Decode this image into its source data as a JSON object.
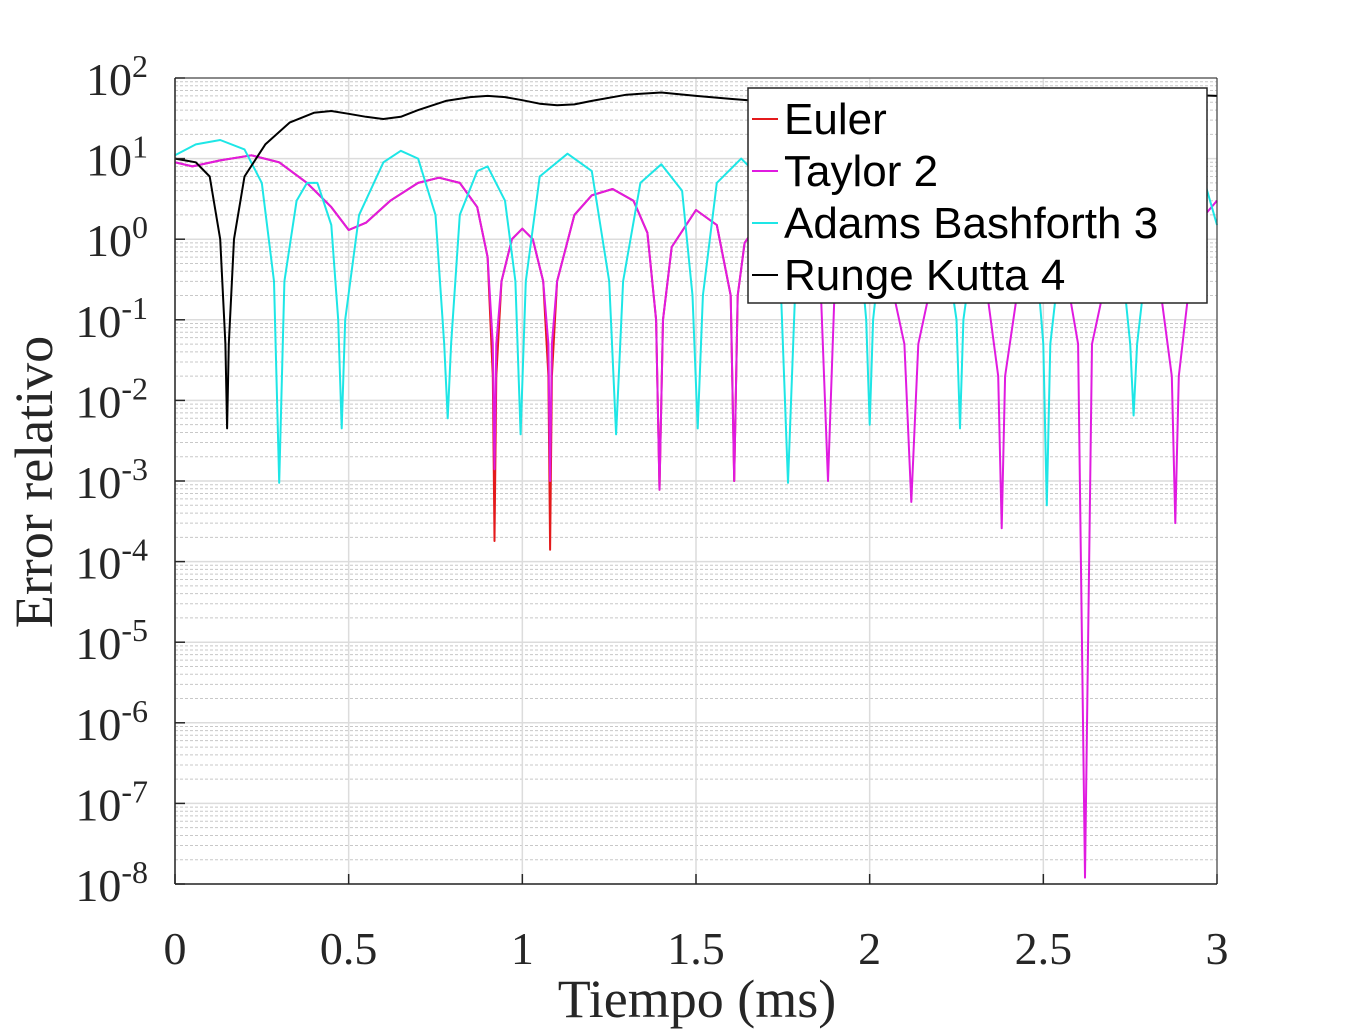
{
  "chart_data": {
    "type": "line",
    "xlabel": "Tiempo (ms)",
    "ylabel": "Error relativo",
    "xlim": [
      0,
      3
    ],
    "ylim": [
      1e-08,
      100
    ],
    "yscale": "log",
    "grid": true,
    "minor_grid": true,
    "legend_placement": "top-right",
    "x_ticks": [
      0,
      0.5,
      1,
      1.5,
      2,
      2.5,
      3
    ],
    "x_tick_labels": [
      "0",
      "0.5",
      "1",
      "1.5",
      "2",
      "2.5",
      "3"
    ],
    "y_tick_exponents": [
      2,
      1,
      0,
      -1,
      -2,
      -3,
      -4,
      -5,
      -6,
      -7,
      -8
    ],
    "y_tick_base": "10",
    "series": [
      {
        "name": "Euler",
        "color": "#e41a1c",
        "points": [
          [
            0,
            9.0
          ],
          [
            0.05,
            8.0
          ],
          [
            0.13,
            9.5
          ],
          [
            0.22,
            11.0
          ],
          [
            0.3,
            9.0
          ],
          [
            0.38,
            5.0
          ],
          [
            0.45,
            2.5
          ],
          [
            0.5,
            1.3
          ],
          [
            0.55,
            1.6
          ],
          [
            0.62,
            3.0
          ],
          [
            0.7,
            5.0
          ],
          [
            0.76,
            5.8
          ],
          [
            0.82,
            5.0
          ],
          [
            0.87,
            2.5
          ],
          [
            0.9,
            0.6
          ],
          [
            0.915,
            0.02
          ],
          [
            0.92,
            0.00018
          ],
          [
            0.925,
            0.02
          ],
          [
            0.94,
            0.3
          ],
          [
            0.97,
            1.0
          ],
          [
            1.0,
            1.35
          ],
          [
            1.03,
            1.0
          ],
          [
            1.06,
            0.3
          ],
          [
            1.075,
            0.02
          ],
          [
            1.08,
            0.00014
          ],
          [
            1.085,
            0.02
          ],
          [
            1.1,
            0.3
          ],
          [
            1.15,
            2.0
          ],
          [
            1.2,
            3.5
          ],
          [
            1.26,
            4.2
          ],
          [
            1.32,
            3.0
          ],
          [
            1.36,
            1.2
          ],
          [
            1.385,
            0.1
          ],
          [
            1.395,
            0.00078
          ],
          [
            1.405,
            0.1
          ],
          [
            1.43,
            0.8
          ],
          [
            1.5,
            2.3
          ],
          [
            1.56,
            1.5
          ],
          [
            1.6,
            0.2
          ],
          [
            1.61,
            0.001
          ],
          [
            1.62,
            0.2
          ],
          [
            1.64,
            0.9
          ],
          [
            1.66,
            1.2
          ],
          [
            1.7,
            1.4
          ]
        ]
      },
      {
        "name": "Taylor 2",
        "color": "#e01be0",
        "points": [
          [
            0,
            9.0
          ],
          [
            0.05,
            8.0
          ],
          [
            0.13,
            9.5
          ],
          [
            0.22,
            11.0
          ],
          [
            0.3,
            9.0
          ],
          [
            0.38,
            5.0
          ],
          [
            0.45,
            2.5
          ],
          [
            0.5,
            1.3
          ],
          [
            0.55,
            1.6
          ],
          [
            0.62,
            3.0
          ],
          [
            0.7,
            5.0
          ],
          [
            0.76,
            5.8
          ],
          [
            0.82,
            5.0
          ],
          [
            0.87,
            2.5
          ],
          [
            0.9,
            0.6
          ],
          [
            0.915,
            0.05
          ],
          [
            0.92,
            0.0014
          ],
          [
            0.925,
            0.05
          ],
          [
            0.94,
            0.3
          ],
          [
            0.97,
            1.0
          ],
          [
            1.0,
            1.35
          ],
          [
            1.03,
            1.0
          ],
          [
            1.06,
            0.3
          ],
          [
            1.075,
            0.05
          ],
          [
            1.08,
            0.001
          ],
          [
            1.085,
            0.05
          ],
          [
            1.1,
            0.3
          ],
          [
            1.15,
            2.0
          ],
          [
            1.2,
            3.5
          ],
          [
            1.26,
            4.2
          ],
          [
            1.32,
            3.0
          ],
          [
            1.36,
            1.2
          ],
          [
            1.385,
            0.1
          ],
          [
            1.395,
            0.00078
          ],
          [
            1.405,
            0.1
          ],
          [
            1.43,
            0.8
          ],
          [
            1.5,
            2.3
          ],
          [
            1.56,
            1.5
          ],
          [
            1.6,
            0.2
          ],
          [
            1.61,
            0.001
          ],
          [
            1.62,
            0.2
          ],
          [
            1.64,
            0.9
          ],
          [
            1.66,
            1.2
          ],
          [
            1.7,
            1.4
          ],
          [
            1.8,
            1.0
          ],
          [
            1.86,
            0.2
          ],
          [
            1.88,
            0.001
          ],
          [
            1.9,
            0.3
          ],
          [
            1.96,
            1.0
          ],
          [
            2.0,
            1.3
          ],
          [
            2.05,
            0.5
          ],
          [
            2.1,
            0.05
          ],
          [
            2.12,
            0.00055
          ],
          [
            2.14,
            0.05
          ],
          [
            2.2,
            0.8
          ],
          [
            2.27,
            1.2
          ],
          [
            2.33,
            0.4
          ],
          [
            2.37,
            0.02
          ],
          [
            2.38,
            0.00026
          ],
          [
            2.39,
            0.02
          ],
          [
            2.44,
            0.6
          ],
          [
            2.5,
            1.0
          ],
          [
            2.56,
            0.5
          ],
          [
            2.6,
            0.05
          ],
          [
            2.62,
            1.2e-08
          ],
          [
            2.64,
            0.05
          ],
          [
            2.7,
            0.8
          ],
          [
            2.76,
            1.0
          ],
          [
            2.83,
            0.4
          ],
          [
            2.87,
            0.02
          ],
          [
            2.88,
            0.0003
          ],
          [
            2.89,
            0.02
          ],
          [
            2.94,
            1.5
          ],
          [
            3.0,
            3.0
          ]
        ]
      },
      {
        "name": "Adams Bashforth 3",
        "color": "#1ee6e6",
        "points": [
          [
            0,
            11.0
          ],
          [
            0.06,
            15.0
          ],
          [
            0.13,
            17.0
          ],
          [
            0.2,
            13.0
          ],
          [
            0.25,
            5.0
          ],
          [
            0.285,
            0.3
          ],
          [
            0.3,
            0.00095
          ],
          [
            0.315,
            0.3
          ],
          [
            0.35,
            3.0
          ],
          [
            0.38,
            5.0
          ],
          [
            0.41,
            5.0
          ],
          [
            0.45,
            1.5
          ],
          [
            0.47,
            0.1
          ],
          [
            0.48,
            0.0045
          ],
          [
            0.49,
            0.1
          ],
          [
            0.53,
            2.0
          ],
          [
            0.6,
            9.0
          ],
          [
            0.65,
            12.5
          ],
          [
            0.7,
            10.0
          ],
          [
            0.75,
            2.0
          ],
          [
            0.775,
            0.05
          ],
          [
            0.785,
            0.006
          ],
          [
            0.795,
            0.05
          ],
          [
            0.82,
            2.0
          ],
          [
            0.87,
            7.0
          ],
          [
            0.9,
            8.0
          ],
          [
            0.95,
            3.0
          ],
          [
            0.98,
            0.3
          ],
          [
            0.995,
            0.0038
          ],
          [
            1.01,
            0.3
          ],
          [
            1.05,
            6.0
          ],
          [
            1.13,
            11.5
          ],
          [
            1.2,
            7.0
          ],
          [
            1.25,
            0.3
          ],
          [
            1.27,
            0.0038
          ],
          [
            1.29,
            0.3
          ],
          [
            1.34,
            5.0
          ],
          [
            1.4,
            8.5
          ],
          [
            1.46,
            4.0
          ],
          [
            1.49,
            0.2
          ],
          [
            1.505,
            0.0045
          ],
          [
            1.52,
            0.2
          ],
          [
            1.56,
            5.0
          ],
          [
            1.63,
            10.0
          ],
          [
            1.7,
            5.0
          ],
          [
            1.745,
            0.2
          ],
          [
            1.765,
            0.00095
          ],
          [
            1.785,
            0.2
          ],
          [
            1.83,
            5.0
          ],
          [
            1.9,
            10.0
          ],
          [
            1.96,
            3.0
          ],
          [
            1.99,
            0.1
          ],
          [
            2.0,
            0.005
          ],
          [
            2.01,
            0.1
          ],
          [
            2.05,
            4.0
          ],
          [
            2.12,
            10.0
          ],
          [
            2.2,
            3.0
          ],
          [
            2.25,
            0.1
          ],
          [
            2.26,
            0.0045
          ],
          [
            2.27,
            0.1
          ],
          [
            2.32,
            4.0
          ],
          [
            2.4,
            10.0
          ],
          [
            2.47,
            2.0
          ],
          [
            2.5,
            0.05
          ],
          [
            2.51,
            0.0005
          ],
          [
            2.52,
            0.05
          ],
          [
            2.57,
            4.0
          ],
          [
            2.65,
            10.0
          ],
          [
            2.72,
            1.0
          ],
          [
            2.75,
            0.05
          ],
          [
            2.76,
            0.0065
          ],
          [
            2.77,
            0.05
          ],
          [
            2.82,
            4.0
          ],
          [
            2.9,
            8.0
          ],
          [
            2.96,
            6.0
          ],
          [
            3.0,
            1.5
          ]
        ]
      },
      {
        "name": "Runge Kutta 4",
        "color": "#000000",
        "points": [
          [
            0,
            10.0
          ],
          [
            0.06,
            9.0
          ],
          [
            0.1,
            6.0
          ],
          [
            0.13,
            1.0
          ],
          [
            0.145,
            0.05
          ],
          [
            0.15,
            0.0045
          ],
          [
            0.155,
            0.05
          ],
          [
            0.17,
            1.0
          ],
          [
            0.2,
            6.0
          ],
          [
            0.26,
            15.0
          ],
          [
            0.33,
            28.0
          ],
          [
            0.4,
            37.0
          ],
          [
            0.45,
            39.0
          ],
          [
            0.5,
            36.0
          ],
          [
            0.55,
            33.0
          ],
          [
            0.6,
            31.0
          ],
          [
            0.65,
            33.0
          ],
          [
            0.7,
            40.0
          ],
          [
            0.78,
            52.0
          ],
          [
            0.85,
            58.0
          ],
          [
            0.9,
            60.0
          ],
          [
            0.95,
            58.0
          ],
          [
            1.0,
            53.0
          ],
          [
            1.05,
            48.0
          ],
          [
            1.1,
            46.0
          ],
          [
            1.15,
            47.0
          ],
          [
            1.2,
            52.0
          ],
          [
            1.3,
            62.0
          ],
          [
            1.4,
            66.0
          ],
          [
            1.5,
            60.0
          ],
          [
            1.6,
            55.0
          ],
          [
            1.65,
            53.0
          ],
          [
            1.7,
            50.0
          ],
          [
            1.75,
            52.0
          ],
          [
            2.9,
            62.0
          ],
          [
            3.0,
            60.0
          ]
        ]
      }
    ]
  }
}
